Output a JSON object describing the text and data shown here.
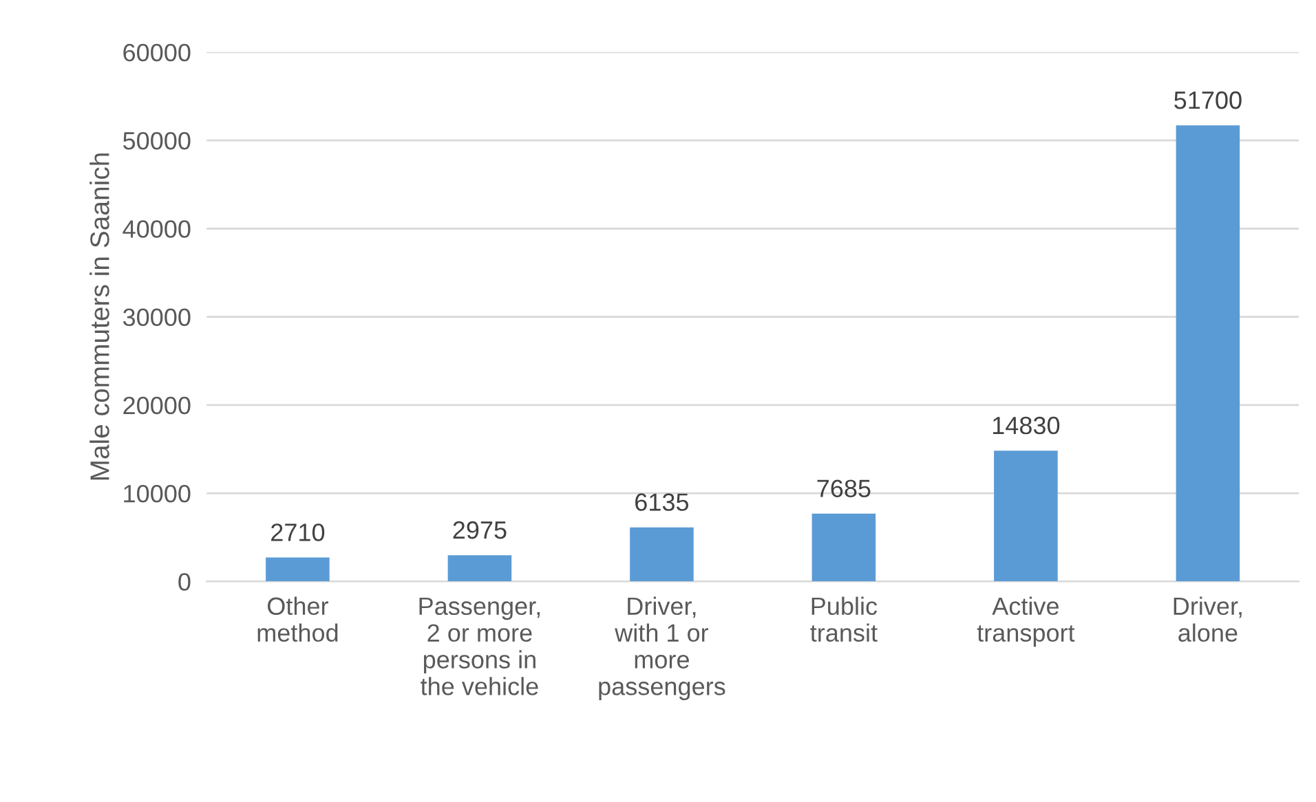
{
  "chart_data": {
    "type": "bar",
    "ylabel": "Male commuters in Saanich",
    "categories": [
      "Other\nmethod",
      "Passenger,\n2 or more\npersons in\nthe vehicle",
      "Driver,\nwith 1 or\nmore\npassengers",
      "Public\ntransit",
      "Active\ntransport",
      "Driver,\nalone"
    ],
    "values": [
      2710,
      2975,
      6135,
      7685,
      14830,
      51700
    ],
    "color": "#5b9bd5",
    "ylim": [
      0,
      60000
    ],
    "yticks": [
      0,
      10000,
      20000,
      30000,
      40000,
      50000,
      60000
    ],
    "grid": "y",
    "data_labels": true
  }
}
